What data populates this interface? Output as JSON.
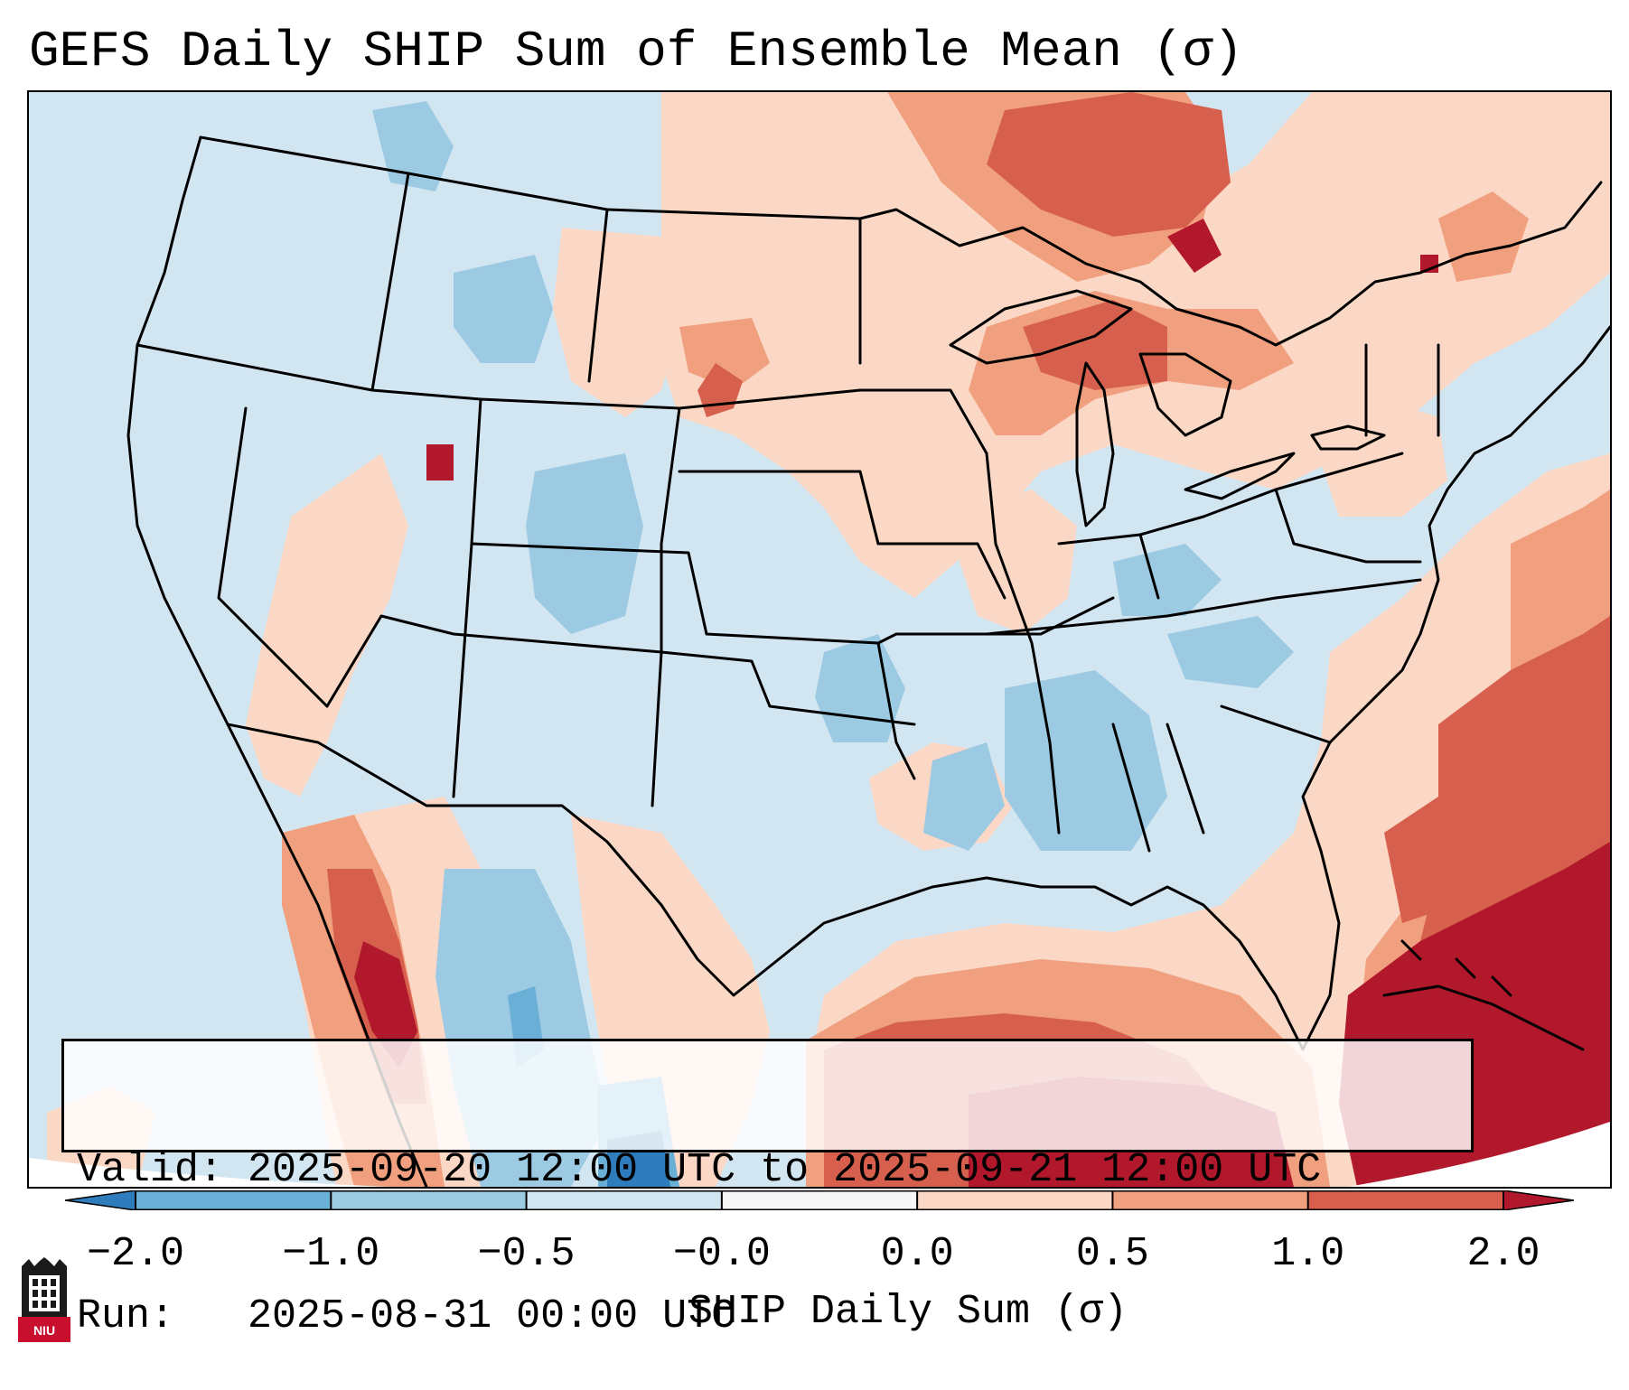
{
  "title": "GEFS Daily SHIP Sum of Ensemble Mean (σ)",
  "map": {
    "projection": "Lambert conformal, CONUS",
    "legend_colors": {
      "strong_negative": "#2f7cbc",
      "moderate_negative": "#6aafd6",
      "weak_negative": "#9ccae3",
      "near_zero_negative": "#d2e6f2",
      "near_zero_positive": "#fbd8c6",
      "weak_positive": "#f0a07f",
      "moderate_positive": "#d6604d",
      "strong_positive": "#b2182b",
      "coastline": "#000000",
      "background": "#d2e6f2"
    }
  },
  "info": {
    "valid_label": "Valid:",
    "valid_value": "2025-09-20 12:00 UTC to 2025-09-21 12:00 UTC",
    "run_label": "Run:",
    "run_value": "2025-08-31 00:00 UTC"
  },
  "colorbar": {
    "ticks": [
      "−2.0",
      "−1.0",
      "−0.5",
      "−0.0",
      "0.0",
      "0.5",
      "1.0",
      "2.0"
    ],
    "colors": [
      "#2f7cbc",
      "#6aafd6",
      "#9ccae3",
      "#d2e6f2",
      "#fbd8c6",
      "#f0a07f",
      "#d6604d",
      "#b2182b"
    ],
    "label": "SHIP Daily Sum (σ)"
  },
  "logo": {
    "text": "NIU",
    "icon": "niu-castle-logo-icon"
  }
}
